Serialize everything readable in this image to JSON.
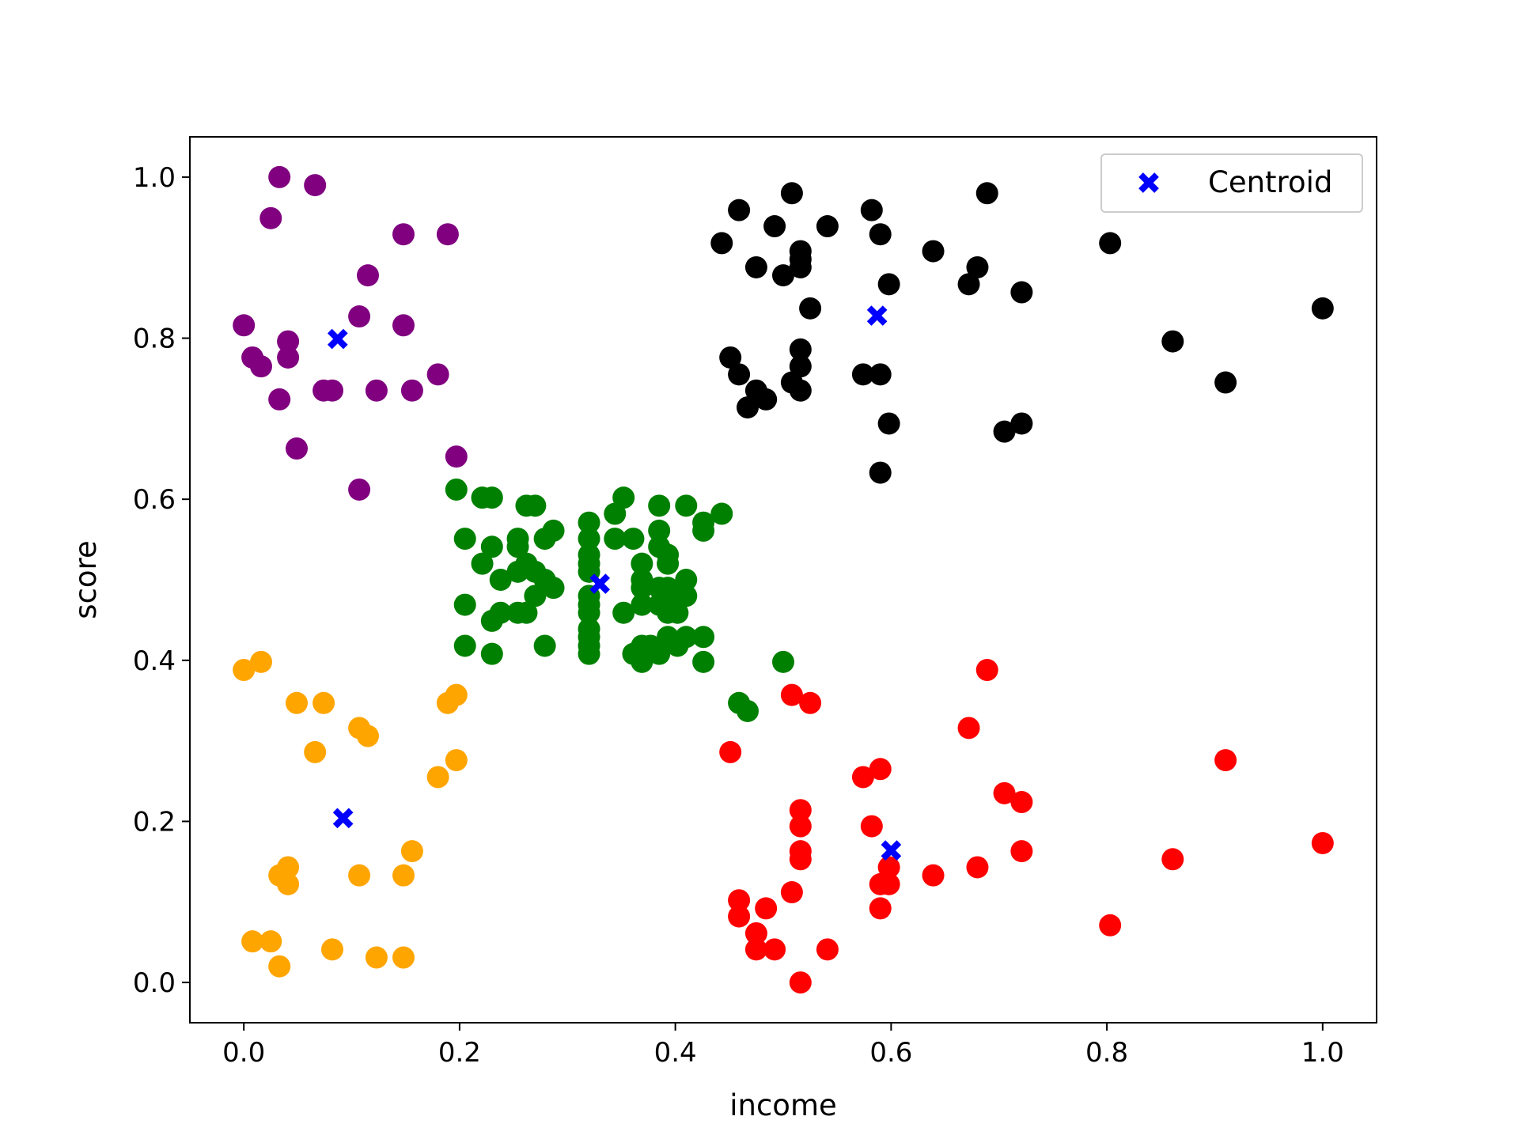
{
  "chart_data": {
    "type": "scatter",
    "xlabel": "income",
    "ylabel": "score",
    "xlim": [
      -0.05,
      1.05
    ],
    "ylim": [
      -0.05,
      1.05
    ],
    "xticks": [
      "0.0",
      "0.2",
      "0.4",
      "0.6",
      "0.8",
      "1.0"
    ],
    "yticks": [
      "0.0",
      "0.2",
      "0.4",
      "0.6",
      "0.8",
      "1.0"
    ],
    "legend": {
      "position": "upper right",
      "entries": [
        {
          "label": "Centroid",
          "marker": "x",
          "color": "#0000ff"
        }
      ]
    },
    "series": [
      {
        "color": "#800080",
        "points": [
          [
            0.033,
            1.0
          ],
          [
            0.066,
            0.99
          ],
          [
            0.025,
            0.949
          ],
          [
            0.148,
            0.929
          ],
          [
            0.189,
            0.929
          ],
          [
            0.115,
            0.878
          ],
          [
            0.107,
            0.827
          ],
          [
            0.0,
            0.816
          ],
          [
            0.148,
            0.816
          ],
          [
            0.041,
            0.796
          ],
          [
            0.008,
            0.776
          ],
          [
            0.041,
            0.776
          ],
          [
            0.016,
            0.765
          ],
          [
            0.18,
            0.755
          ],
          [
            0.074,
            0.735
          ],
          [
            0.082,
            0.735
          ],
          [
            0.123,
            0.735
          ],
          [
            0.156,
            0.735
          ],
          [
            0.033,
            0.724
          ],
          [
            0.049,
            0.663
          ],
          [
            0.197,
            0.653
          ],
          [
            0.107,
            0.612
          ]
        ]
      },
      {
        "color": "#ffa500",
        "points": [
          [
            0.0,
            0.388
          ],
          [
            0.016,
            0.398
          ],
          [
            0.049,
            0.347
          ],
          [
            0.074,
            0.347
          ],
          [
            0.189,
            0.347
          ],
          [
            0.197,
            0.357
          ],
          [
            0.107,
            0.316
          ],
          [
            0.115,
            0.306
          ],
          [
            0.066,
            0.286
          ],
          [
            0.197,
            0.276
          ],
          [
            0.18,
            0.255
          ],
          [
            0.156,
            0.163
          ],
          [
            0.041,
            0.143
          ],
          [
            0.033,
            0.133
          ],
          [
            0.107,
            0.133
          ],
          [
            0.148,
            0.133
          ],
          [
            0.041,
            0.122
          ],
          [
            0.008,
            0.051
          ],
          [
            0.025,
            0.051
          ],
          [
            0.082,
            0.041
          ],
          [
            0.123,
            0.031
          ],
          [
            0.148,
            0.031
          ],
          [
            0.033,
            0.02
          ]
        ]
      },
      {
        "color": "#008000",
        "points": [
          [
            0.197,
            0.612
          ],
          [
            0.221,
            0.602
          ],
          [
            0.23,
            0.602
          ],
          [
            0.262,
            0.592
          ],
          [
            0.27,
            0.592
          ],
          [
            0.352,
            0.602
          ],
          [
            0.385,
            0.592
          ],
          [
            0.41,
            0.592
          ],
          [
            0.443,
            0.582
          ],
          [
            0.344,
            0.582
          ],
          [
            0.32,
            0.571
          ],
          [
            0.426,
            0.571
          ],
          [
            0.287,
            0.561
          ],
          [
            0.385,
            0.561
          ],
          [
            0.426,
            0.561
          ],
          [
            0.205,
            0.551
          ],
          [
            0.254,
            0.551
          ],
          [
            0.279,
            0.551
          ],
          [
            0.32,
            0.551
          ],
          [
            0.344,
            0.551
          ],
          [
            0.361,
            0.551
          ],
          [
            0.385,
            0.541
          ],
          [
            0.23,
            0.541
          ],
          [
            0.254,
            0.541
          ],
          [
            0.32,
            0.531
          ],
          [
            0.393,
            0.531
          ],
          [
            0.262,
            0.52
          ],
          [
            0.221,
            0.52
          ],
          [
            0.32,
            0.52
          ],
          [
            0.369,
            0.52
          ],
          [
            0.393,
            0.52
          ],
          [
            0.254,
            0.51
          ],
          [
            0.27,
            0.51
          ],
          [
            0.32,
            0.51
          ],
          [
            0.369,
            0.5
          ],
          [
            0.238,
            0.5
          ],
          [
            0.279,
            0.5
          ],
          [
            0.369,
            0.49
          ],
          [
            0.41,
            0.5
          ],
          [
            0.287,
            0.49
          ],
          [
            0.385,
            0.49
          ],
          [
            0.393,
            0.49
          ],
          [
            0.27,
            0.48
          ],
          [
            0.32,
            0.48
          ],
          [
            0.402,
            0.48
          ],
          [
            0.41,
            0.48
          ],
          [
            0.205,
            0.469
          ],
          [
            0.32,
            0.469
          ],
          [
            0.369,
            0.469
          ],
          [
            0.385,
            0.469
          ],
          [
            0.262,
            0.459
          ],
          [
            0.254,
            0.459
          ],
          [
            0.32,
            0.459
          ],
          [
            0.352,
            0.459
          ],
          [
            0.393,
            0.459
          ],
          [
            0.402,
            0.459
          ],
          [
            0.238,
            0.459
          ],
          [
            0.23,
            0.449
          ],
          [
            0.32,
            0.439
          ],
          [
            0.32,
            0.429
          ],
          [
            0.393,
            0.429
          ],
          [
            0.41,
            0.429
          ],
          [
            0.426,
            0.429
          ],
          [
            0.205,
            0.418
          ],
          [
            0.279,
            0.418
          ],
          [
            0.32,
            0.418
          ],
          [
            0.369,
            0.418
          ],
          [
            0.377,
            0.418
          ],
          [
            0.402,
            0.418
          ],
          [
            0.32,
            0.408
          ],
          [
            0.361,
            0.408
          ],
          [
            0.385,
            0.408
          ],
          [
            0.23,
            0.408
          ],
          [
            0.369,
            0.398
          ],
          [
            0.426,
            0.398
          ],
          [
            0.5,
            0.398
          ],
          [
            0.459,
            0.347
          ],
          [
            0.467,
            0.337
          ]
        ]
      },
      {
        "color": "#000000",
        "points": [
          [
            0.508,
            0.98
          ],
          [
            0.689,
            0.98
          ],
          [
            0.459,
            0.959
          ],
          [
            0.582,
            0.959
          ],
          [
            0.492,
            0.939
          ],
          [
            0.541,
            0.939
          ],
          [
            0.59,
            0.929
          ],
          [
            0.443,
            0.918
          ],
          [
            0.803,
            0.918
          ],
          [
            0.516,
            0.908
          ],
          [
            0.639,
            0.908
          ],
          [
            0.516,
            0.898
          ],
          [
            0.475,
            0.888
          ],
          [
            0.516,
            0.888
          ],
          [
            0.68,
            0.888
          ],
          [
            0.5,
            0.878
          ],
          [
            0.598,
            0.867
          ],
          [
            0.672,
            0.867
          ],
          [
            0.721,
            0.857
          ],
          [
            0.525,
            0.837
          ],
          [
            1.0,
            0.837
          ],
          [
            0.861,
            0.796
          ],
          [
            0.516,
            0.786
          ],
          [
            0.451,
            0.776
          ],
          [
            0.516,
            0.765
          ],
          [
            0.459,
            0.755
          ],
          [
            0.574,
            0.755
          ],
          [
            0.59,
            0.755
          ],
          [
            0.508,
            0.745
          ],
          [
            0.91,
            0.745
          ],
          [
            0.475,
            0.735
          ],
          [
            0.516,
            0.735
          ],
          [
            0.484,
            0.724
          ],
          [
            0.467,
            0.714
          ],
          [
            0.598,
            0.694
          ],
          [
            0.721,
            0.694
          ],
          [
            0.705,
            0.684
          ],
          [
            0.59,
            0.633
          ]
        ]
      },
      {
        "color": "#ff0000",
        "points": [
          [
            0.689,
            0.388
          ],
          [
            0.508,
            0.357
          ],
          [
            0.525,
            0.347
          ],
          [
            0.672,
            0.316
          ],
          [
            0.451,
            0.286
          ],
          [
            0.91,
            0.276
          ],
          [
            0.59,
            0.265
          ],
          [
            0.574,
            0.255
          ],
          [
            0.705,
            0.235
          ],
          [
            0.721,
            0.224
          ],
          [
            0.516,
            0.214
          ],
          [
            0.516,
            0.194
          ],
          [
            0.582,
            0.194
          ],
          [
            1.0,
            0.173
          ],
          [
            0.516,
            0.163
          ],
          [
            0.721,
            0.163
          ],
          [
            0.516,
            0.153
          ],
          [
            0.861,
            0.153
          ],
          [
            0.598,
            0.143
          ],
          [
            0.68,
            0.143
          ],
          [
            0.639,
            0.133
          ],
          [
            0.59,
            0.122
          ],
          [
            0.598,
            0.122
          ],
          [
            0.508,
            0.112
          ],
          [
            0.459,
            0.102
          ],
          [
            0.59,
            0.092
          ],
          [
            0.484,
            0.092
          ],
          [
            0.459,
            0.082
          ],
          [
            0.803,
            0.071
          ],
          [
            0.475,
            0.061
          ],
          [
            0.475,
            0.041
          ],
          [
            0.492,
            0.041
          ],
          [
            0.541,
            0.041
          ],
          [
            0.516,
            0.0
          ]
        ]
      },
      {
        "name": "Centroid",
        "color": "#0000ff",
        "marker": "x",
        "points": [
          [
            0.087,
            0.799
          ],
          [
            0.33,
            0.495
          ],
          [
            0.587,
            0.828
          ],
          [
            0.092,
            0.204
          ],
          [
            0.6,
            0.164
          ]
        ]
      }
    ]
  }
}
